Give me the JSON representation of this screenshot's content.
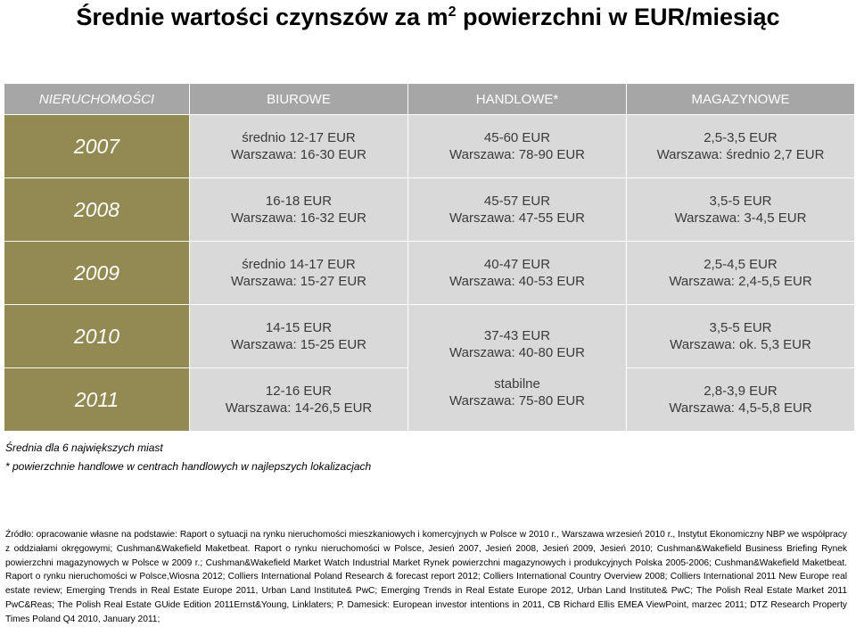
{
  "title": {
    "text": "Średnie wartości czynszów za m",
    "sup": "2",
    "rest": " powierzchni w EUR/miesiąc"
  },
  "table": {
    "headers": [
      "NIERUCHOMOŚCI",
      "BIUROWE",
      "HANDLOWE*",
      "MAGAZYNOWE"
    ],
    "rows": [
      {
        "year": "2007",
        "biurowe": [
          "średnio 12-17 EUR",
          "Warszawa: 16-30 EUR"
        ],
        "handlowe": [
          "45-60 EUR",
          "Warszawa: 78-90 EUR"
        ],
        "magazynowe": [
          "2,5-3,5 EUR",
          "Warszawa: średnio 2,7 EUR"
        ]
      },
      {
        "year": "2008",
        "biurowe": [
          "16-18 EUR",
          "Warszawa: 16-32 EUR"
        ],
        "handlowe": [
          "45-57 EUR",
          "Warszawa: 47-55 EUR"
        ],
        "magazynowe": [
          "3,5-5 EUR",
          "Warszawa: 3-4,5 EUR"
        ]
      },
      {
        "year": "2009",
        "biurowe": [
          "średnio 14-17 EUR",
          "Warszawa: 15-27 EUR"
        ],
        "handlowe": [
          "40-47 EUR",
          "Warszawa: 40-53 EUR"
        ],
        "magazynowe": [
          "2,5-4,5 EUR",
          "Warszawa: 2,4-5,5 EUR"
        ]
      },
      {
        "year": "2010",
        "biurowe": [
          "14-15 EUR",
          "Warszawa: 15-25 EUR"
        ],
        "handlowe": [
          "37-43 EUR",
          "Warszawa: 40-80 EUR"
        ],
        "magazynowe": [
          "3,5-5 EUR",
          "Warszawa: ok. 5,3 EUR"
        ]
      },
      {
        "year": "2011",
        "biurowe": [
          "12-16 EUR",
          "Warszawa: 14-26,5 EUR"
        ],
        "handlowe": [
          "stabilne",
          "Warszawa: 75-80 EUR"
        ],
        "magazynowe": [
          "2,8-3,9 EUR",
          "Warszawa: 4,5-5,8 EUR"
        ]
      }
    ]
  },
  "notes": {
    "cities": "Średnia dla 6 największych miast",
    "retail": "* powierzchnie handlowe w centrach handlowych w najlepszych lokalizacjach"
  },
  "source": "Źródło: opracowanie własne na podstawie: Raport o sytuacji na rynku nieruchomości mieszkaniowych i komercyjnych w Polsce w 2010 r., Warszawa wrzesień 2010 r., Instytut Ekonomiczny NBP we współpracy z oddziałami okręgowymi; Cushman&Wakefield Maketbeat. Raport o rynku nieruchomości w Polsce, Jesień 2007, Jesień 2008, Jesień 2009, Jesień 2010; Cushman&Wakefield Business Briefing Rynek powierzchni magazynowych w Polsce w 2009 r.; Cushman&Wakefield Market Watch Industrial Market Rynek powierzchni magazynowych i produkcyjnych Polska 2005-2006; Cushman&Wakefield Maketbeat. Raport o rynku nieruchomości w Polsce,Wiosna 2012; Colliers International Poland Research & forecast report 2012; Colliers International Country Overview 2008; Colliers International 2011 New Europe real estate review; Emerging Trends in Real Estate Europe 2011, Urban Land Institute& PwC; Emerging Trends in Real Estate Europe 2012, Urban Land Institute& PwC; The Polish Real Estate Market 2011 PwC&Reas; The Polish Real Estate GUide Edition 2011Ernst&Young, Linklaters; P. Damesick: European investor intentions in 2011, CB Richard Ellis EMEA ViewPoint, marzec 2011; DTZ Research Property Times Poland Q4 2010, January 2011;",
  "colors": {
    "year_bg": "#938953",
    "header_bg": "#a6a6a6",
    "cell_bg": "#d9d9d9"
  }
}
